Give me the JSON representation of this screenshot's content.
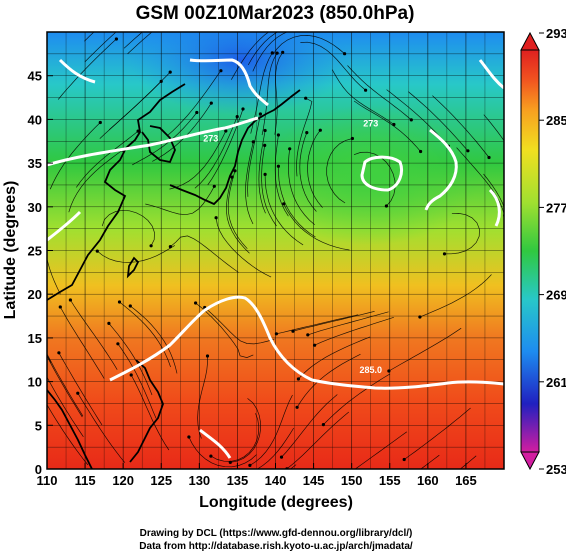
{
  "title": "GSM 00Z10Mar2023 (850.0hPa)",
  "x_axis": {
    "label": "Longitude (degrees)",
    "ticks": [
      110,
      115,
      120,
      125,
      130,
      135,
      140,
      145,
      150,
      155,
      160,
      165
    ],
    "range": [
      110,
      170
    ]
  },
  "y_axis": {
    "label": "Latitude  (degrees)",
    "ticks": [
      0,
      5,
      10,
      15,
      20,
      25,
      30,
      35,
      40,
      45
    ],
    "range": [
      0,
      50
    ]
  },
  "colorbar": {
    "ticks": [
      293,
      285,
      277,
      269,
      261,
      253
    ],
    "range": [
      253,
      293
    ],
    "colors": [
      "#d21ea0",
      "#2020c0",
      "#1e8cf0",
      "#28c8c8",
      "#30c840",
      "#a0e030",
      "#f0e020",
      "#f8a020",
      "#f05020",
      "#e02020"
    ]
  },
  "contour_labels": [
    {
      "text": "273",
      "lon": 131.5,
      "lat": 37.5
    },
    {
      "text": "273",
      "lon": 152.5,
      "lat": 39.2
    },
    {
      "text": "285.0",
      "lon": 152.5,
      "lat": 11.0
    }
  ],
  "footer": {
    "line1": "Drawing by DCL (https://www.gfd-dennou.org/library/dcl/)",
    "line2": "Data from http://database.rish.kyoto-u.ac.jp/arch/jmadata/"
  }
}
